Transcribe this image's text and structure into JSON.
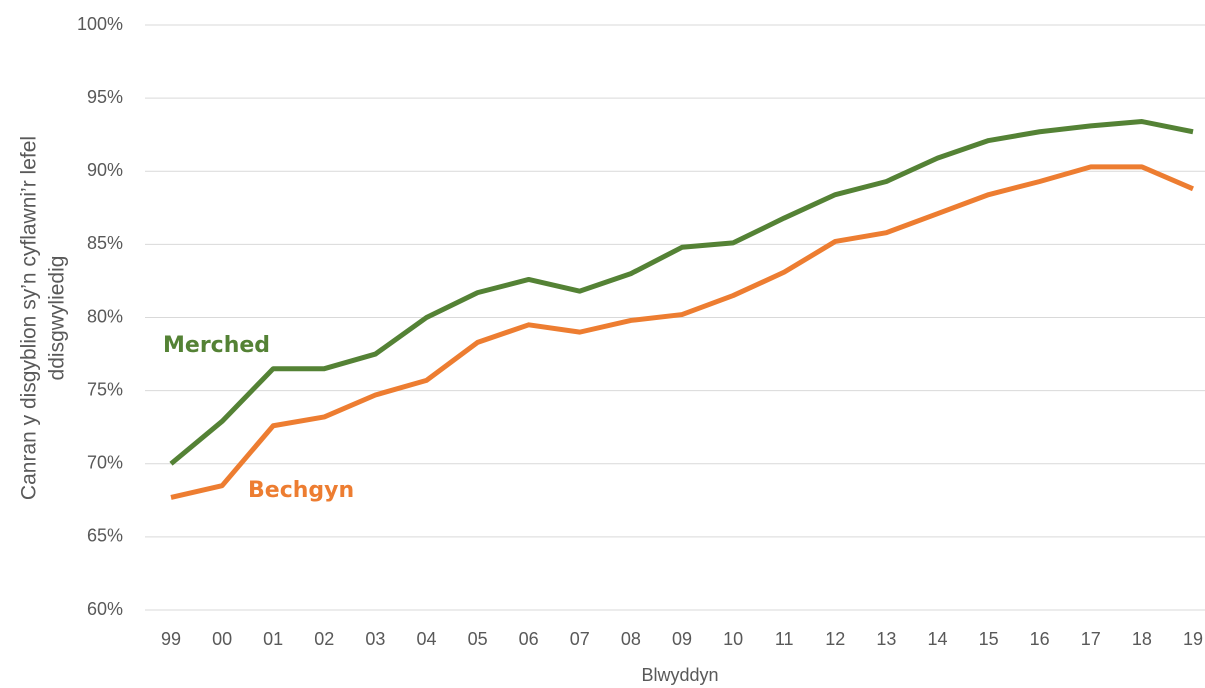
{
  "chart_data": {
    "type": "line",
    "ylabel": [
      "Canran y disgyblion sy’n cyflawni’r lefel",
      "ddisgwyliedig"
    ],
    "xlabel": "Blwyddyn",
    "categories": [
      "99",
      "00",
      "01",
      "02",
      "03",
      "04",
      "05",
      "06",
      "07",
      "08",
      "09",
      "10",
      "11",
      "12",
      "13",
      "14",
      "15",
      "16",
      "17",
      "18",
      "19"
    ],
    "series": [
      {
        "name": "Merched",
        "color": "#548235",
        "values": [
          70.0,
          72.9,
          76.5,
          76.5,
          77.5,
          80.0,
          81.7,
          82.6,
          81.8,
          83.0,
          84.8,
          85.1,
          86.8,
          88.4,
          89.3,
          90.9,
          92.1,
          92.7,
          93.1,
          93.4,
          92.7
        ]
      },
      {
        "name": "Bechgyn",
        "color": "#ed7d31",
        "values": [
          67.7,
          68.5,
          72.6,
          73.2,
          74.7,
          75.7,
          78.3,
          79.5,
          79.0,
          79.8,
          80.2,
          81.5,
          83.1,
          85.2,
          85.8,
          87.1,
          88.4,
          89.3,
          90.3,
          90.3,
          88.8
        ]
      }
    ],
    "ylim": [
      60,
      100
    ],
    "yticks": [
      {
        "value": 60,
        "label": "60%"
      },
      {
        "value": 65,
        "label": "65%"
      },
      {
        "value": 70,
        "label": "70%"
      },
      {
        "value": 75,
        "label": "75%"
      },
      {
        "value": 80,
        "label": "80%"
      },
      {
        "value": 85,
        "label": "85%"
      },
      {
        "value": 90,
        "label": "90%"
      },
      {
        "value": 95,
        "label": "95%"
      },
      {
        "value": 100,
        "label": "100%"
      }
    ],
    "grid": true
  }
}
